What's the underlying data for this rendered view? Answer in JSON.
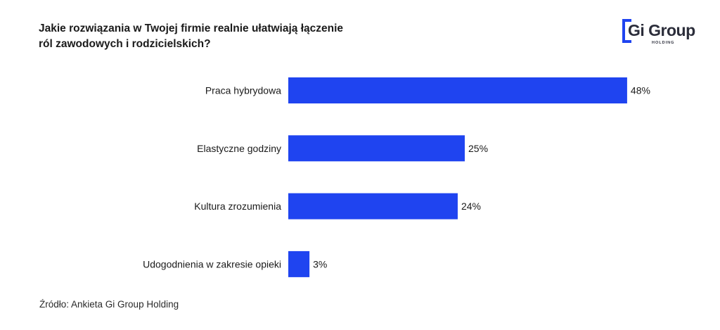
{
  "title_lines": [
    "Jakie rozwiązania w Twojej firmie realnie ułatwiają łączenie",
    "ról zawodowych i rodzicielskich?"
  ],
  "logo": {
    "word": "Gi Group",
    "sub": "HOLDING"
  },
  "source": "Źródło: Ankieta Gi Group Holding",
  "colors": {
    "bar": "#1f44f0",
    "text": "#1a1a1a"
  },
  "chart_data": {
    "type": "bar",
    "orientation": "horizontal",
    "categories": [
      "Praca hybrydowa",
      "Elastyczne godziny",
      "Kultura zrozumienia",
      "Udogodnienia w zakresie opieki"
    ],
    "values": [
      48,
      25,
      24,
      3
    ],
    "value_labels": [
      "48%",
      "25%",
      "24%",
      "3%"
    ],
    "unit": "%",
    "xlim": [
      0,
      50
    ],
    "grid": false,
    "legend": "none"
  }
}
